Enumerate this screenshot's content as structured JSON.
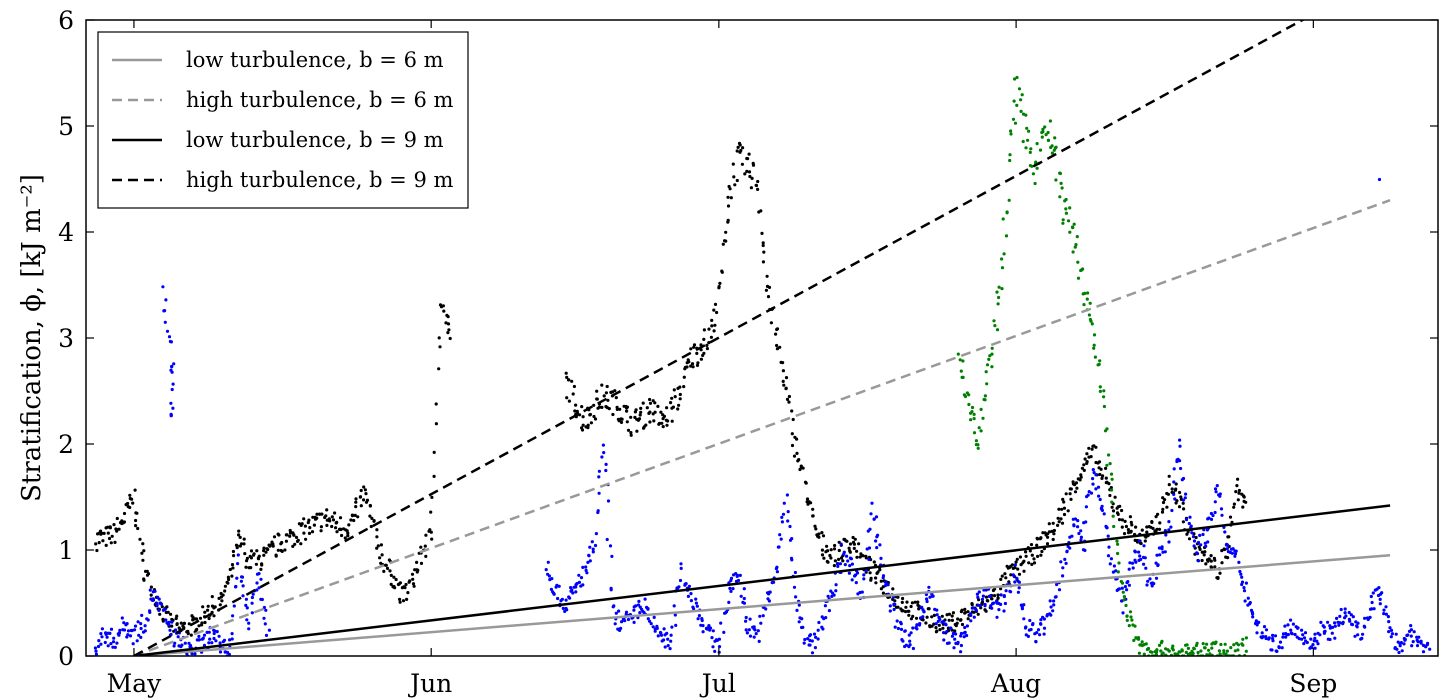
{
  "chart_data": {
    "type": "scatter",
    "ylabel": "Stratification, ϕ, [kJ m⁻²]",
    "xlim": [
      "2014-04-26",
      "2014-09-14"
    ],
    "ylim": [
      0,
      6
    ],
    "xticks": [
      {
        "date": "2014-05-01",
        "label": "May"
      },
      {
        "date": "2014-06-01",
        "label": "Jun"
      },
      {
        "date": "2014-07-01",
        "label": "Jul"
      },
      {
        "date": "2014-08-01",
        "label": "Aug"
      },
      {
        "date": "2014-09-01",
        "label": "Sep"
      }
    ],
    "yticks": [
      0,
      1,
      2,
      3,
      4,
      5,
      6
    ],
    "grid": false,
    "legend_position": "top-left",
    "colors": {
      "black": "#000000",
      "gray": "#999999",
      "blue": "#0000ff",
      "green": "#008000"
    },
    "lines": [
      {
        "name": "low turbulence, b = 6 m",
        "color": "#999999",
        "dash": "solid",
        "x": [
          "2014-05-01",
          "2014-09-09"
        ],
        "y": [
          0.0,
          0.95
        ]
      },
      {
        "name": "high turbulence, b = 6 m",
        "color": "#999999",
        "dash": "dashed",
        "x": [
          "2014-05-01",
          "2014-09-09"
        ],
        "y": [
          0.0,
          4.3
        ]
      },
      {
        "name": "low turbulence, b = 9 m",
        "color": "#000000",
        "dash": "solid",
        "x": [
          "2014-05-01",
          "2014-09-09"
        ],
        "y": [
          0.0,
          1.42
        ]
      },
      {
        "name": "high turbulence, b = 9 m",
        "color": "#000000",
        "dash": "dashed",
        "x": [
          "2014-05-01",
          "2014-09-09"
        ],
        "y": [
          0.0,
          6.45
        ]
      }
    ],
    "scatter_series": [
      {
        "color": "#000000",
        "x": [
          "2014-04-27",
          "2014-04-28",
          "2014-04-29",
          "2014-04-30",
          "2014-05-01",
          "2014-05-02",
          "2014-05-03",
          "2014-05-04",
          "2014-05-05",
          "2014-05-06",
          "2014-05-07",
          "2014-05-08",
          "2014-05-09",
          "2014-05-10",
          "2014-05-11",
          "2014-05-12",
          "2014-05-13",
          "2014-05-14",
          "2014-05-15",
          "2014-05-16",
          "2014-05-17",
          "2014-05-18",
          "2014-05-19",
          "2014-05-20",
          "2014-05-21",
          "2014-05-22",
          "2014-05-23",
          "2014-05-24",
          "2014-05-25",
          "2014-05-26",
          "2014-05-27",
          "2014-05-28",
          "2014-05-29",
          "2014-05-30",
          "2014-05-31",
          "2014-06-01",
          "2014-06-02",
          "2014-06-03",
          "2014-06-15",
          "2014-06-16",
          "2014-06-17",
          "2014-06-18",
          "2014-06-19",
          "2014-06-20",
          "2014-06-21",
          "2014-06-22",
          "2014-06-23",
          "2014-06-24",
          "2014-06-25",
          "2014-06-26",
          "2014-06-27",
          "2014-06-28",
          "2014-06-29",
          "2014-06-30",
          "2014-07-01",
          "2014-07-02",
          "2014-07-03",
          "2014-07-04",
          "2014-07-05",
          "2014-07-06",
          "2014-07-07",
          "2014-07-08",
          "2014-07-09",
          "2014-07-10",
          "2014-07-11",
          "2014-07-12",
          "2014-07-13",
          "2014-07-14",
          "2014-07-15",
          "2014-07-16",
          "2014-07-17",
          "2014-07-18",
          "2014-07-19",
          "2014-07-20",
          "2014-07-21",
          "2014-07-22",
          "2014-07-23",
          "2014-07-24",
          "2014-07-25",
          "2014-07-26",
          "2014-07-27",
          "2014-07-28",
          "2014-07-29",
          "2014-07-30",
          "2014-07-31",
          "2014-08-01",
          "2014-08-02",
          "2014-08-03",
          "2014-08-04",
          "2014-08-05",
          "2014-08-06",
          "2014-08-07",
          "2014-08-08",
          "2014-08-09",
          "2014-08-10",
          "2014-08-11",
          "2014-08-12",
          "2014-08-13",
          "2014-08-14",
          "2014-08-15",
          "2014-08-16",
          "2014-08-17",
          "2014-08-18",
          "2014-08-19",
          "2014-08-20",
          "2014-08-21",
          "2014-08-22",
          "2014-08-23",
          "2014-08-24",
          "2014-08-25"
        ],
        "y": [
          1.1,
          1.12,
          1.15,
          1.3,
          1.5,
          0.85,
          0.6,
          0.4,
          0.3,
          0.25,
          0.28,
          0.35,
          0.45,
          0.5,
          0.75,
          1.1,
          0.9,
          0.9,
          0.95,
          1.05,
          1.1,
          1.15,
          1.2,
          1.25,
          1.3,
          1.25,
          1.2,
          1.3,
          1.55,
          1.2,
          0.9,
          0.75,
          0.55,
          0.7,
          0.95,
          1.15,
          3.3,
          3.0,
          2.6,
          2.4,
          2.2,
          2.35,
          2.45,
          2.4,
          2.3,
          2.2,
          2.25,
          2.35,
          2.2,
          2.3,
          2.5,
          2.8,
          2.9,
          3.0,
          3.4,
          4.3,
          4.7,
          4.6,
          4.5,
          3.5,
          3.0,
          2.5,
          2.0,
          1.6,
          1.2,
          1.0,
          0.95,
          1.0,
          1.1,
          0.9,
          0.8,
          0.7,
          0.6,
          0.5,
          0.45,
          0.4,
          0.35,
          0.3,
          0.3,
          0.35,
          0.4,
          0.45,
          0.5,
          0.6,
          0.75,
          0.8,
          0.9,
          1.0,
          1.1,
          1.2,
          1.4,
          1.6,
          1.8,
          1.9,
          1.7,
          1.5,
          1.3,
          1.2,
          1.1,
          1.15,
          1.3,
          1.6,
          1.5,
          1.2,
          1.0,
          0.9,
          0.8,
          1.0,
          1.6,
          1.4
        ]
      },
      {
        "color": "#0000ff",
        "x": [
          "2014-04-27",
          "2014-04-28",
          "2014-04-29",
          "2014-04-30",
          "2014-05-01",
          "2014-05-02",
          "2014-05-03",
          "2014-05-04",
          "2014-05-05",
          "2014-05-06",
          "2014-05-07",
          "2014-05-08",
          "2014-05-09",
          "2014-05-10",
          "2014-05-11",
          "2014-05-12",
          "2014-05-13",
          "2014-05-14",
          "2014-05-15",
          "2014-06-13",
          "2014-06-14",
          "2014-06-15",
          "2014-06-16",
          "2014-06-17",
          "2014-06-18",
          "2014-06-19",
          "2014-06-20",
          "2014-06-21",
          "2014-06-22",
          "2014-06-23",
          "2014-06-24",
          "2014-06-25",
          "2014-06-26",
          "2014-06-27",
          "2014-06-28",
          "2014-06-29",
          "2014-06-30",
          "2014-07-01",
          "2014-07-02",
          "2014-07-03",
          "2014-07-04",
          "2014-07-05",
          "2014-07-06",
          "2014-07-07",
          "2014-07-08",
          "2014-07-09",
          "2014-07-10",
          "2014-07-11",
          "2014-07-12",
          "2014-07-13",
          "2014-07-14",
          "2014-07-15",
          "2014-07-16",
          "2014-07-17",
          "2014-07-18",
          "2014-07-19",
          "2014-07-20",
          "2014-07-21",
          "2014-07-22",
          "2014-07-23",
          "2014-07-24",
          "2014-07-25",
          "2014-07-26",
          "2014-07-27",
          "2014-07-28",
          "2014-07-29",
          "2014-07-30",
          "2014-07-31",
          "2014-08-01",
          "2014-08-02",
          "2014-08-03",
          "2014-08-04",
          "2014-08-05",
          "2014-08-06",
          "2014-08-07",
          "2014-08-08",
          "2014-08-09",
          "2014-08-10",
          "2014-08-11",
          "2014-08-12",
          "2014-08-13",
          "2014-08-14",
          "2014-08-15",
          "2014-08-16",
          "2014-08-17",
          "2014-08-18",
          "2014-08-19",
          "2014-08-20",
          "2014-08-21",
          "2014-08-22",
          "2014-08-23",
          "2014-08-24",
          "2014-08-25",
          "2014-08-26",
          "2014-08-27",
          "2014-08-28",
          "2014-08-29",
          "2014-08-30",
          "2014-08-31",
          "2014-09-01",
          "2014-09-02",
          "2014-09-03",
          "2014-09-04",
          "2014-09-05",
          "2014-09-06",
          "2014-09-07",
          "2014-09-08",
          "2014-09-09",
          "2014-09-10",
          "2014-09-11",
          "2014-09-12",
          "2014-09-13",
          "2014-05-04",
          "2014-05-05",
          "2014-05-05",
          "2014-09-08"
        ],
        "y": [
          0.1,
          0.2,
          0.15,
          0.3,
          0.2,
          0.3,
          0.6,
          0.4,
          0.2,
          0.1,
          0.05,
          0.1,
          0.2,
          0.1,
          0.05,
          0.9,
          0.3,
          0.8,
          0.2,
          0.9,
          0.6,
          0.5,
          0.6,
          0.8,
          1.0,
          2.0,
          0.4,
          0.3,
          0.35,
          0.5,
          0.3,
          0.2,
          0.1,
          0.8,
          0.6,
          0.4,
          0.2,
          0.1,
          0.6,
          0.8,
          0.3,
          0.2,
          0.5,
          0.8,
          1.5,
          0.6,
          0.2,
          0.1,
          0.4,
          0.6,
          1.0,
          0.8,
          0.6,
          1.4,
          0.9,
          0.5,
          0.2,
          0.1,
          0.4,
          0.6,
          0.3,
          0.2,
          0.1,
          0.3,
          0.5,
          0.6,
          0.4,
          0.6,
          0.8,
          0.3,
          0.2,
          0.3,
          0.5,
          0.9,
          1.3,
          1.0,
          1.8,
          1.4,
          0.9,
          0.5,
          0.8,
          1.0,
          0.7,
          0.9,
          1.2,
          2.0,
          1.3,
          1.0,
          1.2,
          1.6,
          1.0,
          0.9,
          0.6,
          0.3,
          0.2,
          0.1,
          0.2,
          0.3,
          0.2,
          0.1,
          0.3,
          0.2,
          0.4,
          0.3,
          0.2,
          0.5,
          0.6,
          0.2,
          0.1,
          0.2,
          0.1,
          0.15,
          3.45,
          2.75,
          2.25,
          4.55
        ]
      },
      {
        "color": "#008000",
        "x": [
          "2014-07-26",
          "2014-07-27",
          "2014-07-28",
          "2014-07-29",
          "2014-07-30",
          "2014-07-31",
          "2014-08-01",
          "2014-08-02",
          "2014-08-03",
          "2014-08-04",
          "2014-08-05",
          "2014-08-06",
          "2014-08-07",
          "2014-08-08",
          "2014-08-09",
          "2014-08-10",
          "2014-08-11",
          "2014-08-12",
          "2014-08-13",
          "2014-08-14",
          "2014-08-15",
          "2014-08-16",
          "2014-08-17",
          "2014-08-18",
          "2014-08-19",
          "2014-08-20",
          "2014-08-21",
          "2014-08-22",
          "2014-08-23",
          "2014-08-24",
          "2014-08-25"
        ],
        "y": [
          2.8,
          2.4,
          2.0,
          2.6,
          3.2,
          4.2,
          5.4,
          4.9,
          4.6,
          5.0,
          4.8,
          4.2,
          4.0,
          3.5,
          3.1,
          2.5,
          1.5,
          0.6,
          0.3,
          0.1,
          0.05,
          0.05,
          0.04,
          0.03,
          0.03,
          0.03,
          0.05,
          0.05,
          0.04,
          0.05,
          0.1
        ]
      }
    ]
  }
}
